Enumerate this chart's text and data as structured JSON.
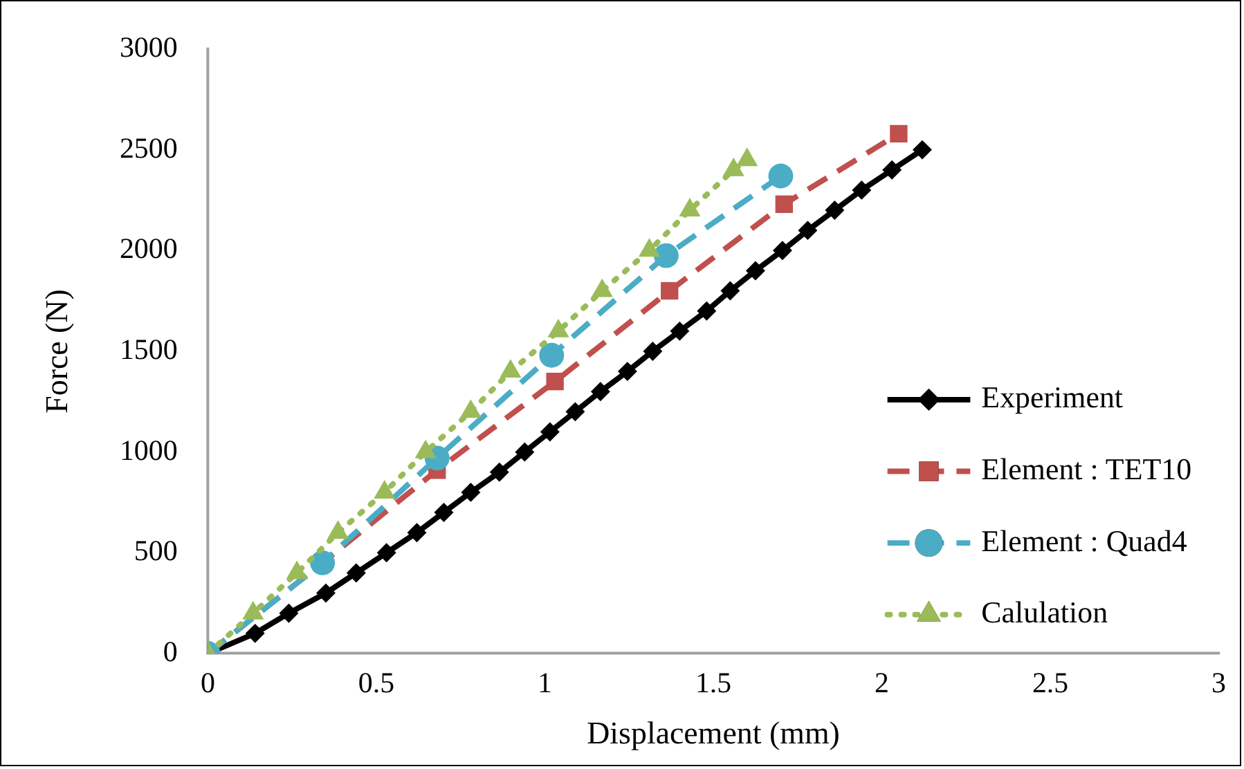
{
  "chart_data": {
    "type": "line",
    "xlabel": "Displacement (mm)",
    "ylabel": "Force (N)",
    "xlim": [
      0,
      3
    ],
    "xticks": [
      0,
      0.5,
      1,
      1.5,
      2,
      2.5,
      3
    ],
    "ylim": [
      0,
      3000
    ],
    "yticks": [
      0,
      500,
      1000,
      1500,
      2000,
      2500,
      3000
    ],
    "grid": false,
    "legend": "right",
    "series": [
      {
        "name": "Experiment",
        "color": "#000000",
        "marker": "diamond",
        "line_style": "solid",
        "x": [
          0,
          0.14,
          0.24,
          0.35,
          0.44,
          0.53,
          0.62,
          0.7,
          0.78,
          0.865,
          0.94,
          1.015,
          1.09,
          1.165,
          1.245,
          1.32,
          1.4,
          1.48,
          1.55,
          1.625,
          1.705,
          1.78,
          1.86,
          1.94,
          2.03,
          2.12
        ],
        "values": [
          0,
          100,
          200,
          300,
          400,
          500,
          600,
          700,
          800,
          900,
          1000,
          1100,
          1200,
          1300,
          1400,
          1500,
          1600,
          1700,
          1800,
          1900,
          2000,
          2100,
          2200,
          2300,
          2400,
          2500
        ]
      },
      {
        "name": "Element : TET10",
        "color": "#c0504d",
        "marker": "square",
        "line_style": "dashed",
        "x": [
          0,
          0.34,
          0.68,
          1.03,
          1.37,
          1.71,
          2.05
        ],
        "values": [
          0,
          450,
          910,
          1350,
          1800,
          2230,
          2580
        ]
      },
      {
        "name": "Element : Quad4",
        "color": "#4bacc6",
        "marker": "circle",
        "line_style": "dashed",
        "x": [
          0,
          0.34,
          0.68,
          1.02,
          1.36,
          1.7
        ],
        "values": [
          0,
          450,
          970,
          1480,
          1975,
          2370
        ]
      },
      {
        "name": "Calulation",
        "color": "#9bbb59",
        "marker": "triangle",
        "line_style": "dotted",
        "x": [
          0,
          0.134,
          0.264,
          0.386,
          0.524,
          0.646,
          0.78,
          0.898,
          1.04,
          1.17,
          1.31,
          1.43,
          1.56,
          1.6
        ],
        "values": [
          0,
          200,
          400,
          600,
          800,
          1000,
          1200,
          1400,
          1600,
          1800,
          2000,
          2200,
          2400,
          2450
        ]
      }
    ]
  }
}
